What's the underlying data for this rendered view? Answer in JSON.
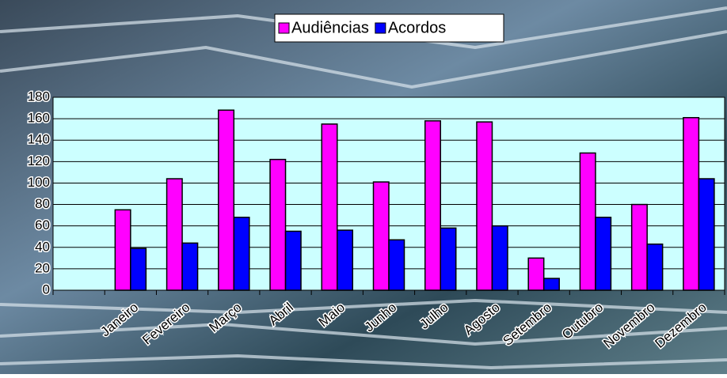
{
  "chart_data": {
    "type": "bar",
    "categories": [
      null,
      "Janeiro",
      "Fevereiro",
      "Março",
      "Abril",
      "Maio",
      "Junho",
      "Julho",
      "Agosto",
      "Setembro",
      "Outubro",
      "Novembro",
      "Dezembro"
    ],
    "series": [
      {
        "name": "Audiências",
        "color": "#ff00ff",
        "values": [
          null,
          75,
          104,
          168,
          122,
          155,
          101,
          158,
          157,
          30,
          128,
          80,
          161
        ]
      },
      {
        "name": "Acordos",
        "color": "#0000ff",
        "values": [
          null,
          39,
          44,
          68,
          55,
          56,
          47,
          58,
          60,
          11,
          68,
          43,
          104
        ]
      }
    ],
    "ylim": [
      0,
      180
    ],
    "yticks": [
      0,
      20,
      40,
      60,
      80,
      100,
      120,
      140,
      160,
      180
    ],
    "grid": true,
    "legend": "top"
  }
}
